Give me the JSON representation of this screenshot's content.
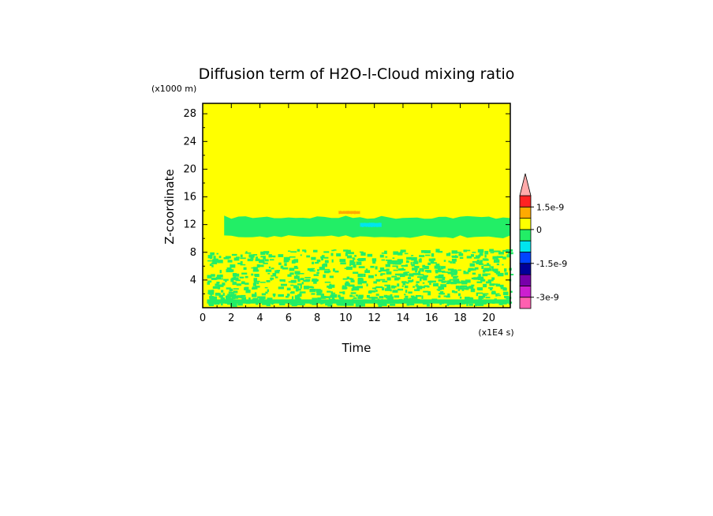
{
  "chart_data": {
    "type": "heatmap",
    "title": "Diffusion term of H2O-l-Cloud mixing ratio",
    "xlabel": "Time",
    "ylabel": "Z-coordinate",
    "x_unit": "(x1E4 s)",
    "y_unit": "(x1000 m)",
    "xlim": [
      0,
      21.5
    ],
    "ylim": [
      0,
      29.5
    ],
    "x_ticks": [
      "0",
      "2",
      "4",
      "6",
      "8",
      "10",
      "12",
      "14",
      "16",
      "18",
      "20"
    ],
    "y_ticks": [
      "4",
      "8",
      "12",
      "16",
      "20",
      "24",
      "28"
    ],
    "background_value_color": "#ffff00",
    "regions": [
      {
        "name": "near-zero negative band (upper cloud layer)",
        "x": [
          1.5,
          21.5
        ],
        "y": [
          10.0,
          13.3
        ],
        "color": "#22ee66"
      },
      {
        "name": "negative speckle (lower layer)",
        "x": [
          0.3,
          21.5
        ],
        "y": [
          0.6,
          8.5
        ],
        "color": "#22ee66"
      },
      {
        "name": "negative cyan patch",
        "x": [
          11.0,
          12.5
        ],
        "y": [
          11.6,
          12.3
        ],
        "color": "#00e5ee"
      },
      {
        "name": "positive orange patch",
        "x": [
          9.5,
          11.0
        ],
        "y": [
          13.5,
          14.0
        ],
        "color": "#ffaa00"
      }
    ],
    "colorbar": {
      "levels": [
        {
          "color": "#ff60b0"
        },
        {
          "color": "#cc1fd0"
        },
        {
          "color": "#7700aa"
        },
        {
          "color": "#000099"
        },
        {
          "color": "#0044ff"
        },
        {
          "color": "#00e5ee"
        },
        {
          "color": "#22ee66"
        },
        {
          "color": "#ffff00"
        },
        {
          "color": "#ffaa00"
        },
        {
          "color": "#ff2222"
        },
        {
          "color": "#ffaaaa"
        }
      ],
      "labels": [
        "1.5e-9",
        "0",
        "-1.5e-9",
        "-3e-9"
      ]
    }
  }
}
